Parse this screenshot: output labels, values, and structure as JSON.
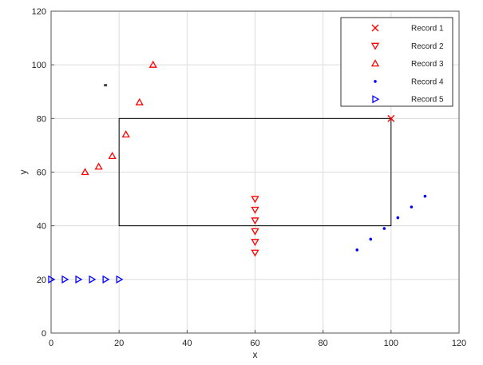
{
  "chart_data": {
    "type": "scatter",
    "title": "",
    "xlabel": "x",
    "ylabel": "y",
    "xlim": [
      0,
      120
    ],
    "ylim": [
      0,
      120
    ],
    "xticks": [
      0,
      20,
      40,
      60,
      80,
      100,
      120
    ],
    "yticks": [
      0,
      20,
      40,
      60,
      80,
      100,
      120
    ],
    "grid": true,
    "legend_position": "top-right",
    "series": [
      {
        "name": "Record 1",
        "marker": "x",
        "color": "#ff0000",
        "points": [
          [
            100,
            80
          ]
        ]
      },
      {
        "name": "Record 2",
        "marker": "triangle-down",
        "color": "#ff0000",
        "points": [
          [
            60,
            50
          ],
          [
            60,
            46
          ],
          [
            60,
            42
          ],
          [
            60,
            38
          ],
          [
            60,
            34
          ],
          [
            60,
            30
          ]
        ]
      },
      {
        "name": "Record 3",
        "marker": "triangle-up",
        "color": "#ff0000",
        "points": [
          [
            10,
            60
          ],
          [
            14,
            62
          ],
          [
            18,
            66
          ],
          [
            22,
            74
          ],
          [
            26,
            86
          ],
          [
            30,
            100
          ]
        ]
      },
      {
        "name": "Record 4",
        "marker": "dot",
        "color": "#0000ff",
        "points": [
          [
            90,
            31
          ],
          [
            94,
            35
          ],
          [
            98,
            39
          ],
          [
            102,
            43
          ],
          [
            106,
            47
          ],
          [
            110,
            51
          ]
        ]
      },
      {
        "name": "Record 5",
        "marker": "triangle-right",
        "color": "#0000ff",
        "points": [
          [
            0,
            20
          ],
          [
            4,
            20
          ],
          [
            8,
            20
          ],
          [
            12,
            20
          ],
          [
            16,
            20
          ],
          [
            20,
            20
          ]
        ]
      }
    ],
    "annotations": [
      {
        "type": "rectangle",
        "x": [
          20,
          100
        ],
        "y": [
          40,
          80
        ],
        "color": "#000000"
      },
      {
        "type": "marker",
        "x": 16,
        "y": 92.4,
        "color": "#444444"
      }
    ]
  }
}
